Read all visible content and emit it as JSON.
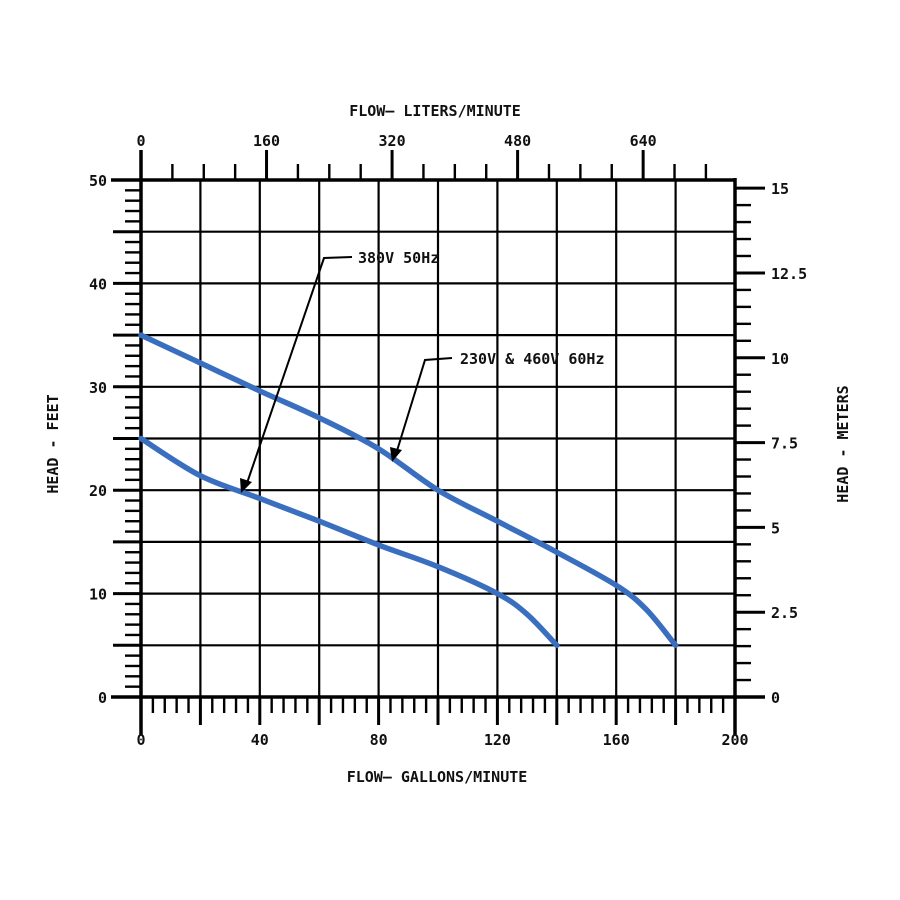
{
  "chart_data": {
    "type": "line",
    "title": "",
    "top_axis": {
      "label": "FLOW— LITERS/MINUTE",
      "ticks": [
        0,
        160,
        320,
        480,
        640
      ],
      "tick_labels": [
        "0",
        "160",
        "320",
        "480",
        "640"
      ],
      "units": "liters/minute"
    },
    "xlabel": "FLOW— GALLONS/MINUTE",
    "xticks": [
      0,
      40,
      80,
      120,
      160,
      200
    ],
    "xtick_labels": [
      "0",
      "40",
      "80",
      "120",
      "160",
      "200"
    ],
    "xlim": [
      0,
      200
    ],
    "ylabel": "HEAD - FEET",
    "yticks": [
      0,
      10,
      20,
      30,
      40,
      50
    ],
    "ytick_labels": [
      "0",
      "10",
      "20",
      "30",
      "40",
      "50"
    ],
    "ylim": [
      0,
      50
    ],
    "right_axis": {
      "label": "HEAD - METERS",
      "ticks": [
        0,
        2.5,
        5,
        7.5,
        10,
        12.5,
        15
      ],
      "tick_labels": [
        "0",
        "2.5",
        "5",
        "7.5",
        "10",
        "12.5",
        "15"
      ]
    },
    "grid": true,
    "series": [
      {
        "name": "230V & 460V 60Hz",
        "color": "#3a6fc0",
        "x": [
          0,
          20,
          40,
          60,
          80,
          100,
          120,
          140,
          160,
          170,
          180
        ],
        "y": [
          35,
          32.3,
          29.6,
          27,
          24,
          20,
          17,
          14,
          10.8,
          8.5,
          5
        ]
      },
      {
        "name": "380V 50Hz",
        "color": "#3a6fc0",
        "x": [
          0,
          20,
          40,
          60,
          80,
          100,
          120,
          130,
          140
        ],
        "y": [
          25,
          21.4,
          19.2,
          17,
          14.7,
          12.6,
          10,
          8,
          5
        ]
      }
    ],
    "annotations": [
      {
        "text": "380V  50Hz",
        "points_to_series": "380V 50Hz"
      },
      {
        "text": "230V & 460V  60Hz",
        "points_to_series": "230V & 460V 60Hz"
      }
    ]
  }
}
